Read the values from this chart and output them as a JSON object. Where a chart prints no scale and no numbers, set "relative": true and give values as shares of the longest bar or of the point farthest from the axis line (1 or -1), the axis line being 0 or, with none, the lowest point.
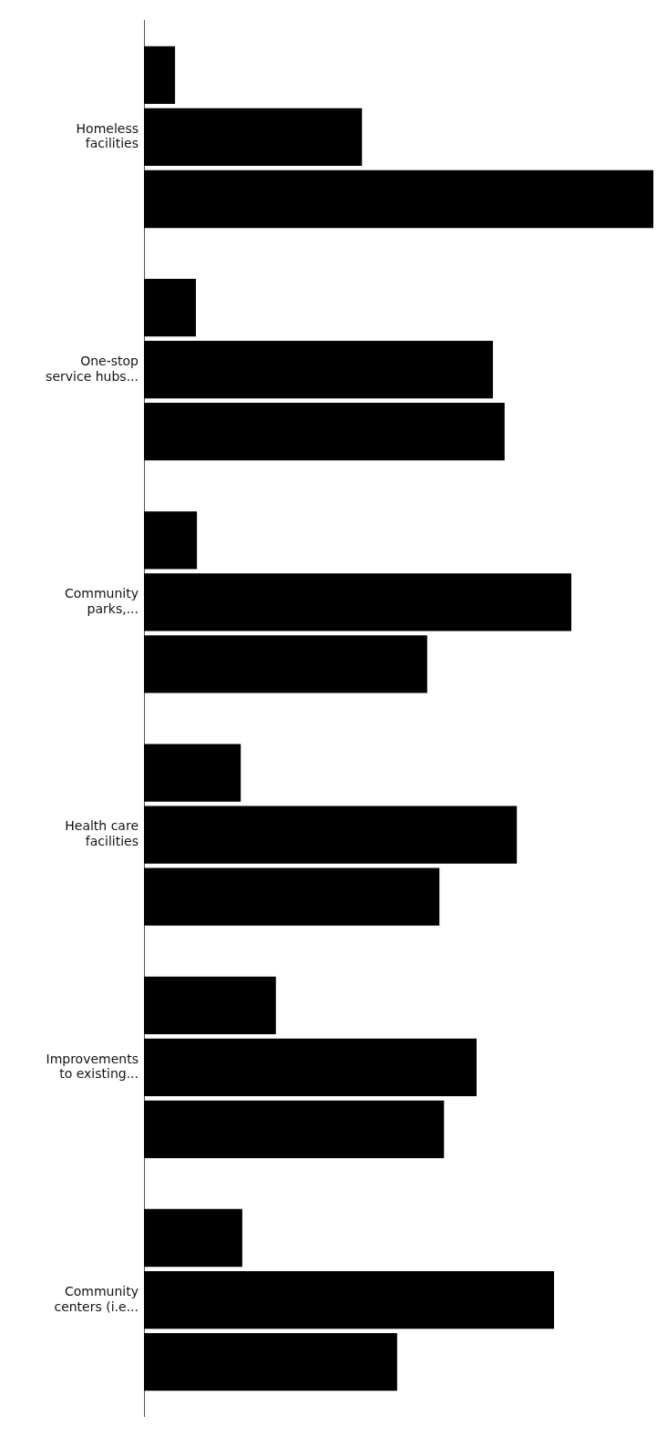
{
  "chart_data": {
    "type": "bar",
    "orientation": "horizontal",
    "relative": true,
    "legend": false,
    "grid": false,
    "categories": [
      "Homeless\nfacilities",
      "One-stop\nservice hubs...",
      "Community\nparks,...",
      "Health care\nfacilities",
      "Improvements\nto existing...",
      "Community\ncenters (i.e..."
    ],
    "series": [
      {
        "color": "#000000",
        "values": [
          0.061,
          0.102,
          0.104,
          0.19,
          0.259,
          0.193
        ]
      },
      {
        "color": "#000000",
        "values": [
          0.428,
          0.685,
          0.839,
          0.732,
          0.653,
          0.805
        ]
      },
      {
        "color": "#000000",
        "values": [
          1,
          0.708,
          0.556,
          0.58,
          0.589,
          0.497
        ]
      }
    ]
  }
}
